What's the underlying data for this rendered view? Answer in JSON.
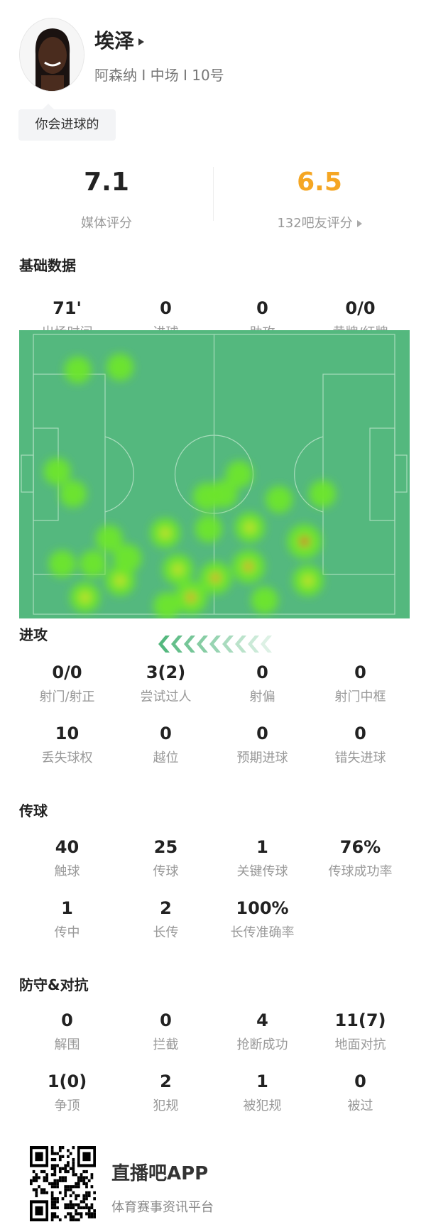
{
  "player": {
    "name": "埃泽",
    "info": "阿森纳 I 中场 I 10号",
    "bubble": "你会进球的"
  },
  "ratings": {
    "media": {
      "value": "7.1",
      "label": "媒体评分"
    },
    "fans": {
      "value": "6.5",
      "label": "132吧友评分",
      "color": "#f5a623"
    }
  },
  "sections": {
    "basic": "基础数据",
    "attack": "进攻",
    "passing": "传球",
    "defense": "防守&对抗"
  },
  "basic": [
    {
      "v": "71'",
      "l": "出场时间"
    },
    {
      "v": "0",
      "l": "进球"
    },
    {
      "v": "0",
      "l": "助攻"
    },
    {
      "v": "0/0",
      "l": "黄牌/红牌"
    }
  ],
  "attack": [
    {
      "v": "0/0",
      "l": "射门/射正"
    },
    {
      "v": "3(2)",
      "l": "尝试过人"
    },
    {
      "v": "0",
      "l": "射偏"
    },
    {
      "v": "0",
      "l": "射门中框"
    },
    {
      "v": "10",
      "l": "丢失球权"
    },
    {
      "v": "0",
      "l": "越位"
    },
    {
      "v": "0",
      "l": "预期进球"
    },
    {
      "v": "0",
      "l": "错失进球"
    }
  ],
  "passing": [
    {
      "v": "40",
      "l": "触球"
    },
    {
      "v": "25",
      "l": "传球"
    },
    {
      "v": "1",
      "l": "关键传球"
    },
    {
      "v": "76%",
      "l": "传球成功率"
    },
    {
      "v": "1",
      "l": "传中"
    },
    {
      "v": "2",
      "l": "长传"
    },
    {
      "v": "100%",
      "l": "长传准确率"
    }
  ],
  "defense": [
    {
      "v": "0",
      "l": "解围"
    },
    {
      "v": "0",
      "l": "拦截"
    },
    {
      "v": "4",
      "l": "抢断成功"
    },
    {
      "v": "11(7)",
      "l": "地面对抗"
    },
    {
      "v": "1(0)",
      "l": "争顶"
    },
    {
      "v": "2",
      "l": "犯规"
    },
    {
      "v": "1",
      "l": "被犯规"
    },
    {
      "v": "0",
      "l": "被过"
    }
  ],
  "heatmap": {
    "attack_direction": "left",
    "pitch_color": "#54b87e",
    "points": [
      [
        12.3,
        12.7,
        0.5
      ],
      [
        24,
        11.7,
        0.5
      ],
      [
        6.6,
        49,
        0.5
      ],
      [
        11,
        57,
        0.5
      ],
      [
        21,
        73,
        0.5
      ],
      [
        8,
        82,
        0.5
      ],
      [
        16.5,
        82,
        0.5
      ],
      [
        26,
        80,
        0.6
      ],
      [
        24,
        88,
        0.7
      ],
      [
        14.3,
        94,
        0.7
      ],
      [
        36.5,
        71,
        0.7
      ],
      [
        40,
        84,
        0.75
      ],
      [
        37,
        97,
        0.5
      ],
      [
        43.6,
        94,
        0.9
      ],
      [
        50.4,
        87,
        0.85
      ],
      [
        48.5,
        69.5,
        0.5
      ],
      [
        48,
        58,
        0.55
      ],
      [
        52.7,
        57,
        0.55
      ],
      [
        57,
        50,
        0.5
      ],
      [
        59.9,
        69,
        0.7
      ],
      [
        59.5,
        83,
        0.9
      ],
      [
        68,
        59,
        0.5
      ],
      [
        75,
        74,
        1.0
      ],
      [
        76,
        88,
        0.75
      ],
      [
        64,
        95,
        0.5
      ],
      [
        80,
        57,
        0.5
      ]
    ]
  },
  "footer": {
    "app": "直播吧APP",
    "tagline": "体育赛事资讯平台",
    "qr_icon": "qr-code-icon"
  }
}
